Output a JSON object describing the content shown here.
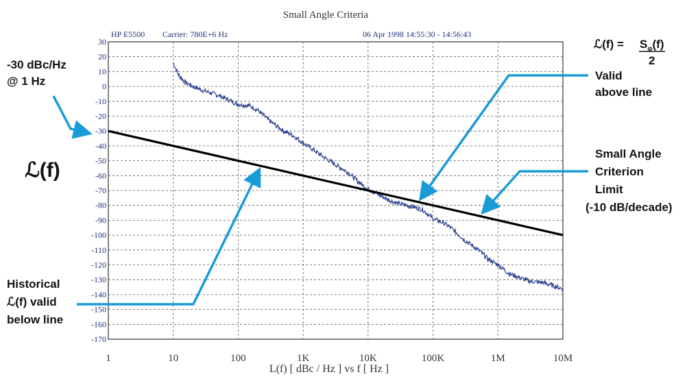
{
  "chart_data": {
    "type": "line",
    "title": "Small Angle Criteria",
    "header": {
      "instrument": "HP E5500",
      "carrier": "Carrier: 780E+6 Hz",
      "datetime": "06 Apr 1998  14:55:30 - 14:56:43"
    },
    "xlabel": "L(f)  [ dBc / Hz ]  vs  f  [ Hz ]",
    "ylabel": "ℒ(f)",
    "x_scale": "log",
    "xlim": [
      1,
      10000000
    ],
    "ylim": [
      -170,
      30
    ],
    "x_ticks": [
      {
        "value": 1,
        "label": "1"
      },
      {
        "value": 10,
        "label": "10"
      },
      {
        "value": 100,
        "label": "100"
      },
      {
        "value": 1000,
        "label": "1K"
      },
      {
        "value": 10000,
        "label": "10K"
      },
      {
        "value": 100000,
        "label": "100K"
      },
      {
        "value": 1000000,
        "label": "1M"
      },
      {
        "value": 10000000,
        "label": "10M"
      }
    ],
    "y_ticks": [
      "30",
      "20",
      "10",
      "0",
      "-10",
      "-20",
      "-30",
      "-40",
      "-50",
      "-60",
      "-70",
      "-80",
      "-90",
      "-100",
      "-110",
      "-120",
      "-130",
      "-140",
      "-150",
      "-160",
      "-170"
    ],
    "grid": true,
    "series": [
      {
        "color": "#2b3f8e",
        "x": [
          10,
          12,
          15,
          20,
          30,
          50,
          70,
          100,
          150,
          200,
          300,
          500,
          700,
          1000,
          2000,
          3000,
          5000,
          7000,
          10000,
          20000,
          30000,
          50000,
          70000,
          100000,
          150000,
          200000,
          300000,
          500000,
          700000,
          1000000,
          1500000,
          2000000,
          3000000,
          5000000,
          10000000
        ],
        "y": [
          16,
          8,
          3,
          0,
          -3,
          -6,
          -9,
          -12,
          -13,
          -16,
          -23,
          -30,
          -33,
          -38,
          -47,
          -52,
          -58,
          -64,
          -69,
          -76,
          -79,
          -81,
          -83,
          -89,
          -92,
          -96,
          -103,
          -110,
          -116,
          -120,
          -126,
          -128,
          -131,
          -132,
          -136
        ]
      },
      {
        "color": "#000000",
        "x": [
          1,
          10000000
        ],
        "y": [
          -30,
          -100
        ]
      }
    ],
    "annotations": {
      "formula_lhs": "ℒ(f) = ",
      "formula_num": "S",
      "formula_sub": "φ",
      "formula_num_rest": "(f)",
      "formula_den": "2",
      "point_label_1": "-30 dBc/Hz",
      "point_label_2": "@ 1 Hz",
      "valid_above_1": "Valid",
      "valid_above_2": "above line",
      "limit_1": "Small Angle",
      "limit_2": "Criterion",
      "limit_3": "Limit",
      "limit_4": "(-10 dB/decade)",
      "hist_1": "Historical",
      "hist_2": "ℒ(f) valid",
      "hist_3": "below line"
    },
    "arrow_color": "#1a9ad6"
  }
}
